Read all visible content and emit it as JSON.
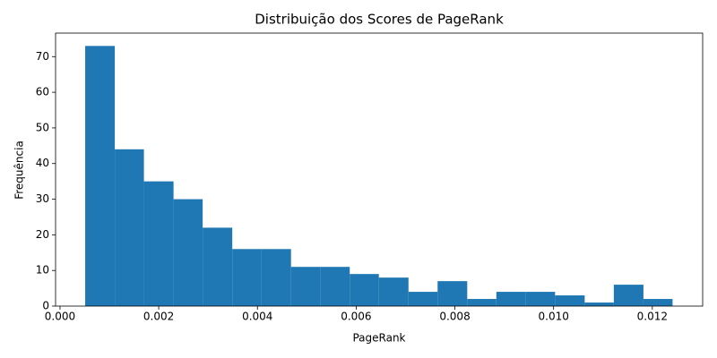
{
  "chart_data": {
    "type": "histogram",
    "title": "Distribuição dos Scores de PageRank",
    "x_label": "PageRank",
    "y_label": "Frequência",
    "bins": [
      0.00051,
      0.00111,
      0.0017,
      0.0023,
      0.00289,
      0.00349,
      0.00408,
      0.00468,
      0.00527,
      0.00587,
      0.00646,
      0.00706,
      0.00765,
      0.00825,
      0.00884,
      0.00944,
      0.01003,
      0.01063,
      0.01122,
      0.01182,
      0.01241
    ],
    "values": [
      73,
      44,
      35,
      30,
      22,
      16,
      16,
      11,
      11,
      9,
      8,
      4,
      7,
      2,
      4,
      4,
      3,
      1,
      6,
      2
    ],
    "color": "#1f77b4",
    "xlim": [
      -9e-05,
      0.01302
    ],
    "xticks": [
      {
        "value": 0,
        "label": "0.000"
      },
      {
        "value": 0.002,
        "label": "0.002"
      },
      {
        "value": 0.004,
        "label": "0.004"
      },
      {
        "value": 0.006,
        "label": "0.006"
      },
      {
        "value": 0.008,
        "label": "0.008"
      },
      {
        "value": 0.01,
        "label": "0.010"
      },
      {
        "value": 0.012,
        "label": "0.012"
      }
    ],
    "ylim": [
      0,
      76.6
    ],
    "yticks": [
      0,
      10,
      20,
      30,
      40,
      50,
      60,
      70
    ]
  }
}
